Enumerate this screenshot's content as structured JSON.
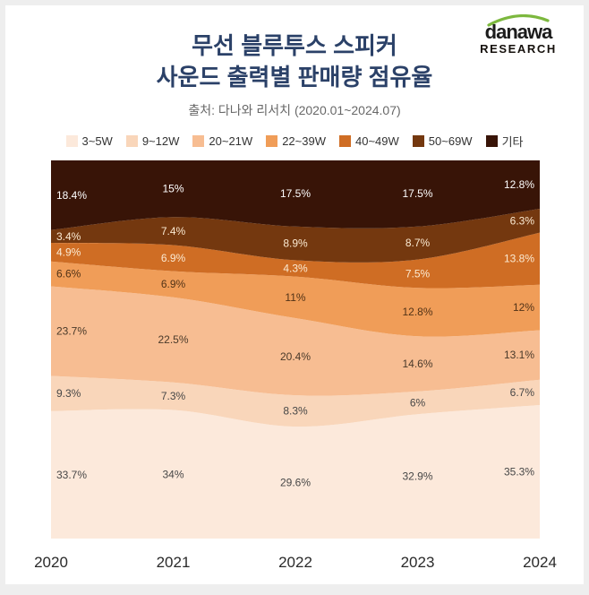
{
  "logo": {
    "brand": "danawa",
    "research": "RESEARCH"
  },
  "header": {
    "title_line1": "무선 블루투스 스피커",
    "title_line2": "사운드 출력별 판매량 점유율",
    "subtitle": "출처: 다나와 리서치 (2020.01~2024.07)"
  },
  "chart_data": {
    "type": "area",
    "stacked": true,
    "percent": true,
    "title": "무선 블루투스 스피커 사운드 출력별 판매량 점유율",
    "source": "출처: 다나와 리서치 (2020.01~2024.07)",
    "legend_position": "top",
    "grid": false,
    "ylim": [
      0,
      100
    ],
    "x": [
      "2020",
      "2021",
      "2022",
      "2023",
      "2024"
    ],
    "series": [
      {
        "name": "3~5W",
        "color": "#fce9db",
        "label_color": "#474747",
        "values": [
          33.7,
          34,
          29.6,
          32.9,
          35.3
        ]
      },
      {
        "name": "9~12W",
        "color": "#f9d6ba",
        "label_color": "#474747",
        "values": [
          9.3,
          7.3,
          8.3,
          6,
          6.7
        ]
      },
      {
        "name": "20~21W",
        "color": "#f7bd92",
        "label_color": "#4a3a2a",
        "values": [
          23.7,
          22.5,
          20.4,
          14.6,
          13.1
        ]
      },
      {
        "name": "22~39W",
        "color": "#f09d58",
        "label_color": "#523317",
        "values": [
          6.6,
          6.9,
          11,
          12.8,
          12
        ]
      },
      {
        "name": "40~49W",
        "color": "#cf6d24",
        "label_color": "#fbead2",
        "values": [
          4.9,
          6.9,
          4.3,
          7.5,
          13.8
        ]
      },
      {
        "name": "50~69W",
        "color": "#74380f",
        "label_color": "#fbead2",
        "values": [
          3.4,
          7.4,
          8.9,
          8.7,
          6.3
        ]
      },
      {
        "name": "기타",
        "color": "#381407",
        "label_color": "#ffffff",
        "values": [
          18.4,
          15,
          17.5,
          17.5,
          12.8
        ]
      }
    ]
  }
}
